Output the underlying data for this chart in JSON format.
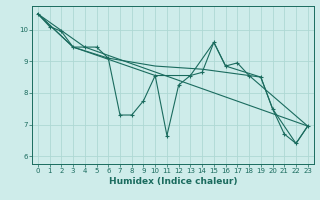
{
  "xlabel": "Humidex (Indice chaleur)",
  "bg_color": "#ceecea",
  "grid_color": "#aed8d4",
  "line_color": "#1a6b5e",
  "xlim": [
    -0.5,
    23.5
  ],
  "ylim": [
    5.75,
    10.75
  ],
  "xticks": [
    0,
    1,
    2,
    3,
    4,
    5,
    6,
    7,
    8,
    9,
    10,
    11,
    12,
    13,
    14,
    15,
    16,
    17,
    18,
    19,
    20,
    21,
    22,
    23
  ],
  "yticks": [
    6,
    7,
    8,
    9,
    10
  ],
  "series": [
    [
      0,
      10.5
    ],
    [
      1,
      10.1
    ],
    [
      2,
      9.95
    ],
    [
      3,
      9.45
    ],
    [
      4,
      9.45
    ],
    [
      5,
      9.45
    ],
    [
      6,
      9.1
    ],
    [
      7,
      7.3
    ],
    [
      8,
      7.3
    ],
    [
      9,
      7.75
    ],
    [
      10,
      8.55
    ],
    [
      11,
      6.65
    ],
    [
      12,
      8.25
    ],
    [
      13,
      8.55
    ],
    [
      14,
      8.65
    ],
    [
      15,
      9.6
    ],
    [
      16,
      8.85
    ],
    [
      17,
      8.95
    ],
    [
      18,
      8.55
    ],
    [
      19,
      8.5
    ],
    [
      20,
      7.5
    ],
    [
      21,
      6.7
    ],
    [
      22,
      6.4
    ],
    [
      23,
      6.95
    ]
  ],
  "line2": [
    [
      0,
      10.5
    ],
    [
      4,
      9.45
    ],
    [
      23,
      6.95
    ]
  ],
  "line3": [
    [
      0,
      10.5
    ],
    [
      3,
      9.45
    ],
    [
      6,
      9.1
    ],
    [
      10,
      8.85
    ],
    [
      14,
      8.75
    ],
    [
      18,
      8.55
    ],
    [
      23,
      6.95
    ]
  ],
  "line4": [
    [
      0,
      10.5
    ],
    [
      3,
      9.45
    ],
    [
      10,
      8.55
    ],
    [
      13,
      8.55
    ],
    [
      15,
      9.6
    ],
    [
      16,
      8.85
    ],
    [
      19,
      8.5
    ],
    [
      20,
      7.5
    ],
    [
      22,
      6.4
    ],
    [
      23,
      6.95
    ]
  ]
}
